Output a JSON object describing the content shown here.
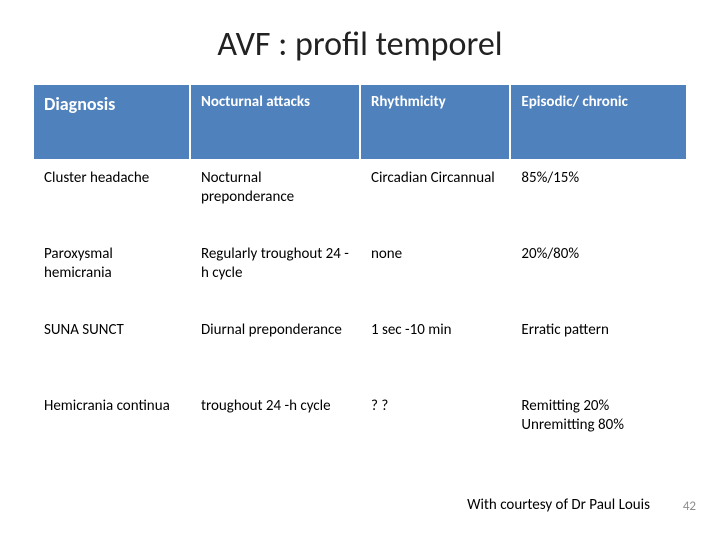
{
  "title": "AVF : profil temporel",
  "table": {
    "header_bg": "#4f81bd",
    "header_fg": "#ffffff",
    "cell_bg": "#ffffff",
    "cell_fg": "#000000",
    "border_color": "#ffffff",
    "col_widths_pct": [
      24,
      26,
      23,
      27
    ],
    "columns": [
      "Diagnosis",
      "Nocturnal attacks",
      "Rhythmicity",
      "Episodic/ chronic"
    ],
    "rows": [
      [
        "Cluster headache",
        "Nocturnal preponderance",
        "Circadian Circannual",
        "85%/15%"
      ],
      [
        "Paroxysmal hemicrania",
        "Regularly troughout  24 -h cycle",
        "none",
        "20%/80%"
      ],
      [
        "SUNA SUNCT",
        "Diurnal preponderance",
        "1 sec -10 min",
        "Erratic pattern"
      ],
      [
        "Hemicrania continua",
        "troughout  24 -h cycle",
        "? ?",
        "Remitting 20% Unremitting 80%"
      ]
    ]
  },
  "credit": "With courtesy of Dr Paul Louis",
  "page_number": "42",
  "style": {
    "title_fontsize": 34,
    "header_fontsize": 15,
    "header_first_fontsize": 18,
    "cell_fontsize": 15,
    "credit_fontsize": 15,
    "page_number_color": "#8c8c8c"
  }
}
